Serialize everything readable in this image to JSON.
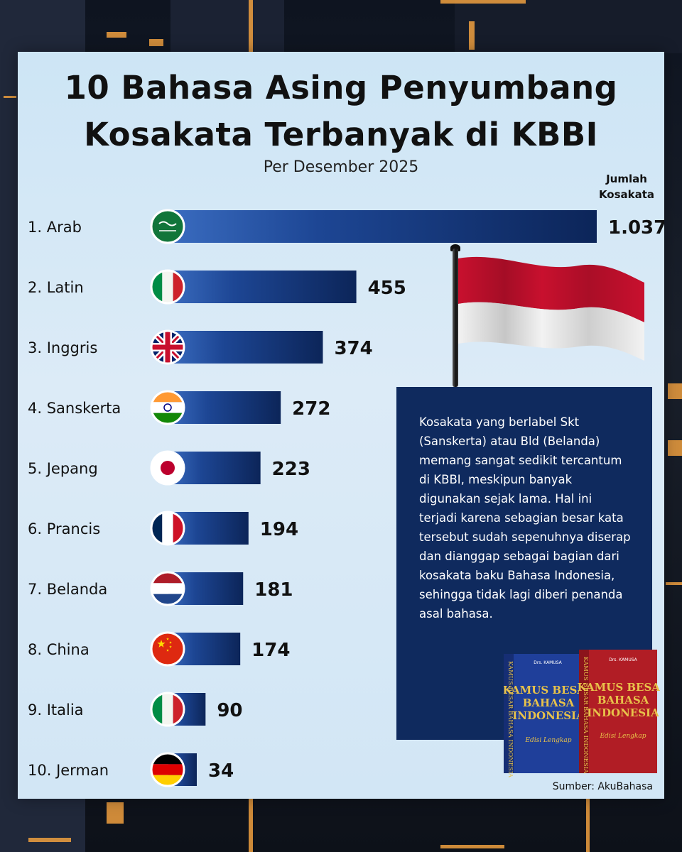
{
  "title_line1": "10 Bahasa Asing Penyumbang",
  "title_line2": "Kosakata Terbanyak di KBBI",
  "subtitle": "Per Desember 2025",
  "column_header_line1": "Jumlah",
  "column_header_line2": "Kosakata",
  "note": "Kosakata yang berlabel Skt (Sanskerta) atau Bld (Belanda) memang sangat sedikit tercantum di KBBI, meskipun banyak digunakan sejak lama. Hal ini terjadi karena sebagian besar kata tersebut sudah sepenuhnya diserap dan dianggap sebagai bagian dari kosakata baku Bahasa Indonesia, sehingga tidak lagi diberi penanda asal bahasa.",
  "source": "Sumber: AkuBahasa",
  "book_text": {
    "author": "Drs. KAMUSA",
    "title_l1": "KAMUS BESAR",
    "title_l2": "BAHASA",
    "title_l3": "INDONESIA",
    "edition": "Edisi Lengkap",
    "spine": "KAMUS BESAR BAHASA INDONESIA"
  },
  "colors": {
    "bar_dark": "#0d2a63",
    "bar_light": "#2a5cb3",
    "note_bg": "#0f2a5e",
    "flag_red": "#c8102e",
    "flag_white": "#f4f4f4"
  },
  "chart_data": {
    "type": "bar",
    "orientation": "horizontal",
    "categories": [
      "1. Arab",
      "2. Latin",
      "3. Inggris",
      "4. Sanskerta",
      "5. Jepang",
      "6. Prancis",
      "7. Belanda",
      "8. China",
      "9. Italia",
      "10. Jerman"
    ],
    "values": [
      1037,
      455,
      374,
      272,
      223,
      194,
      181,
      174,
      90,
      34
    ],
    "value_labels": [
      "1.037",
      "455",
      "374",
      "272",
      "223",
      "194",
      "181",
      "174",
      "90",
      "34"
    ],
    "flag_icons": [
      "saudi-arabia-flag-icon",
      "italy-flag-icon",
      "united-kingdom-flag-icon",
      "india-flag-icon",
      "japan-flag-icon",
      "france-flag-icon",
      "netherlands-flag-icon",
      "china-flag-icon",
      "italy-flag-icon",
      "germany-flag-icon"
    ],
    "title": "10 Bahasa Asing Penyumbang Kosakata Terbanyak di KBBI",
    "subtitle": "Per Desember 2025",
    "value_axis_label": "Jumlah Kosakata",
    "grid": false,
    "legend": "none"
  }
}
